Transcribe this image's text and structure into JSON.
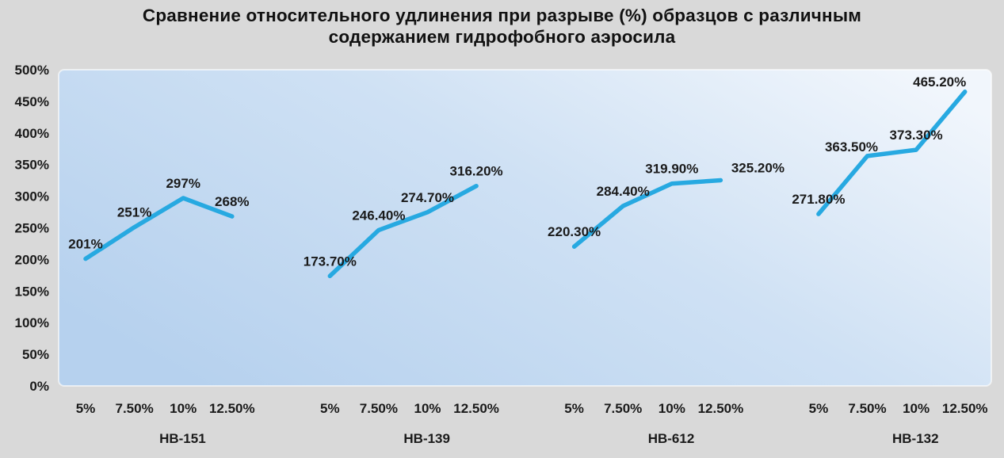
{
  "page": {
    "background_color": "#d9d9d9"
  },
  "header": {
    "title_lines": [
      "Сравнение относительного удлинения при разрыве (%) образцов с различным",
      "содержанием гидрофобного аэросила"
    ]
  },
  "chart_data": {
    "type": "line",
    "title": "Сравнение относительного удлинения при разрыве (%) образцов с различным содержанием гидрофобного аэросила",
    "xlabel": "",
    "ylabel": "",
    "grid": "off",
    "legend": "none",
    "y_axis": {
      "min": 0,
      "max": 500,
      "step": 50,
      "tick_labels": [
        "0%",
        "50%",
        "100%",
        "150%",
        "200%",
        "250%",
        "300%",
        "350%",
        "400%",
        "450%",
        "500%"
      ]
    },
    "x_categories": [
      "5%",
      "7.50%",
      "10%",
      "12.50%"
    ],
    "series": [
      {
        "name": "НВ-151",
        "values": [
          201,
          251,
          297,
          268
        ],
        "data_labels": [
          "201%",
          "251%",
          "297%",
          "268%"
        ]
      },
      {
        "name": "НВ-139",
        "values": [
          173.7,
          246.4,
          274.7,
          316.2
        ],
        "data_labels": [
          "173.70%",
          "246.40%",
          "274.70%",
          "316.20%"
        ]
      },
      {
        "name": "НВ-612",
        "values": [
          220.3,
          284.4,
          319.9,
          325.2
        ],
        "data_labels": [
          "220.30%",
          "284.40%",
          "319.90%",
          "325.20%"
        ]
      },
      {
        "name": "НВ-132",
        "values": [
          271.8,
          363.5,
          373.3,
          465.2
        ],
        "data_labels": [
          "271.80%",
          "363.50%",
          "373.30%",
          "465.20%"
        ]
      }
    ],
    "line_color": "#27a9e1",
    "plot_gradient": [
      "#b6d1ee",
      "#cfe1f4",
      "#f1f6fc"
    ],
    "text_color": "#1a1a1a"
  }
}
